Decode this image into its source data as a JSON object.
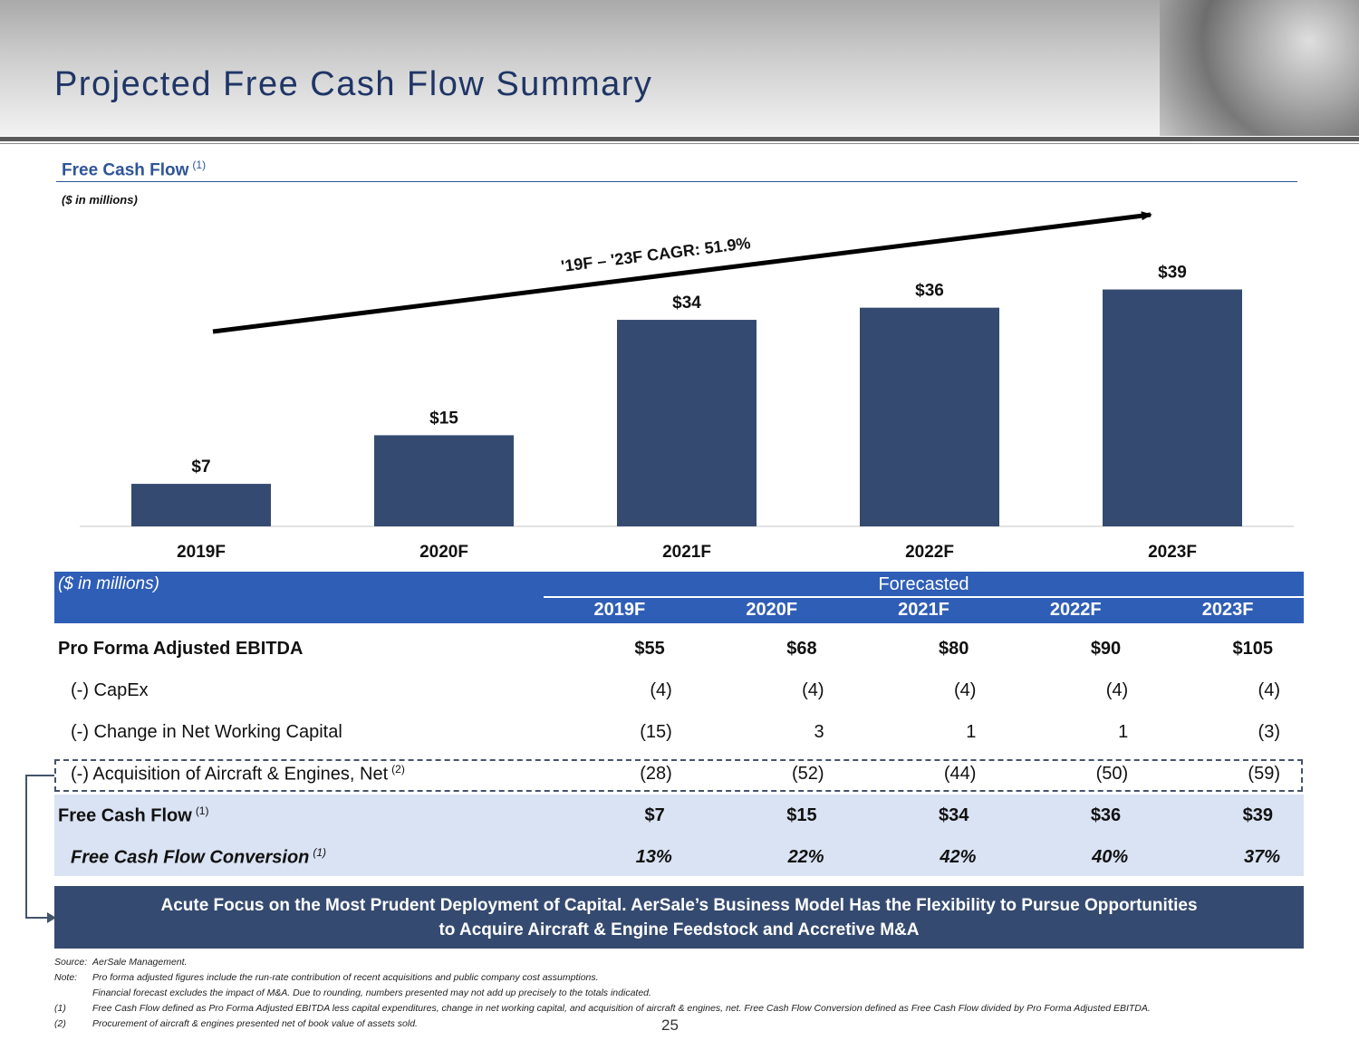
{
  "title": "Projected Free Cash Flow Summary",
  "section": {
    "title": "Free Cash Flow",
    "note_mark": "(1)",
    "units": "($ in millions)"
  },
  "chart_data": {
    "type": "bar",
    "categories": [
      "2019F",
      "2020F",
      "2021F",
      "2022F",
      "2023F"
    ],
    "values": [
      7,
      15,
      34,
      36,
      39
    ],
    "value_labels": [
      "$7",
      "$15",
      "$34",
      "$36",
      "$39"
    ],
    "annotation": "'19F – '23F CAGR: 51.9%",
    "ylim": [
      0,
      44
    ],
    "colors": {
      "bar": "#354a70"
    }
  },
  "table": {
    "units": "($ in millions)",
    "group_label": "Forecasted",
    "years": [
      "2019F",
      "2020F",
      "2021F",
      "2022F",
      "2023F"
    ],
    "rows": [
      {
        "label": "Pro Forma Adjusted EBITDA",
        "values": [
          "$55",
          "$68",
          "$80",
          "$90",
          "$105"
        ]
      },
      {
        "label": "(-) CapEx",
        "values": [
          "(4)",
          "(4)",
          "(4)",
          "(4)",
          "(4)"
        ]
      },
      {
        "label": "(-) Change in Net Working Capital",
        "values": [
          "(15)",
          "3",
          "1",
          "1",
          "(3)"
        ]
      },
      {
        "label": "(-) Acquisition of Aircraft & Engines, Net",
        "note_mark": "(2)",
        "values": [
          "(28)",
          "(52)",
          "(44)",
          "(50)",
          "(59)"
        ]
      },
      {
        "label": "Free Cash Flow",
        "note_mark": "(1)",
        "values": [
          "$7",
          "$15",
          "$34",
          "$36",
          "$39"
        ]
      },
      {
        "label": "Free Cash Flow Conversion",
        "note_mark": "(1)",
        "values": [
          "13%",
          "22%",
          "42%",
          "40%",
          "37%"
        ]
      }
    ]
  },
  "callout": {
    "line1": "Acute Focus on the Most Prudent Deployment of Capital. AerSale’s Business Model Has the Flexibility to Pursue Opportunities",
    "line2": "to Acquire Aircraft & Engine Feedstock and Accretive M&A"
  },
  "footnotes": [
    {
      "key": "Source:",
      "text": "AerSale Management."
    },
    {
      "key": "Note:",
      "text": "Pro forma adjusted figures include the run-rate contribution of recent acquisitions and public company cost assumptions."
    },
    {
      "key": "",
      "text": "Financial forecast excludes the impact of M&A. Due to rounding, numbers presented may not add up precisely to the totals indicated."
    },
    {
      "key": "(1)",
      "text": "Free Cash Flow defined as Pro Forma Adjusted EBITDA less capital expenditures, change in net working capital, and acquisition of aircraft & engines, net. Free Cash Flow Conversion defined as Free Cash Flow divided by Pro Forma Adjusted EBITDA."
    },
    {
      "key": "(2)",
      "text": "Procurement of aircraft & engines presented net of book value of assets sold."
    }
  ],
  "page_number": "25",
  "colors": {
    "title": "#1f3566",
    "accent": "#2f5597",
    "header_band": "#2f5eb7",
    "bar": "#354a70",
    "shade": "#dae3f3"
  }
}
